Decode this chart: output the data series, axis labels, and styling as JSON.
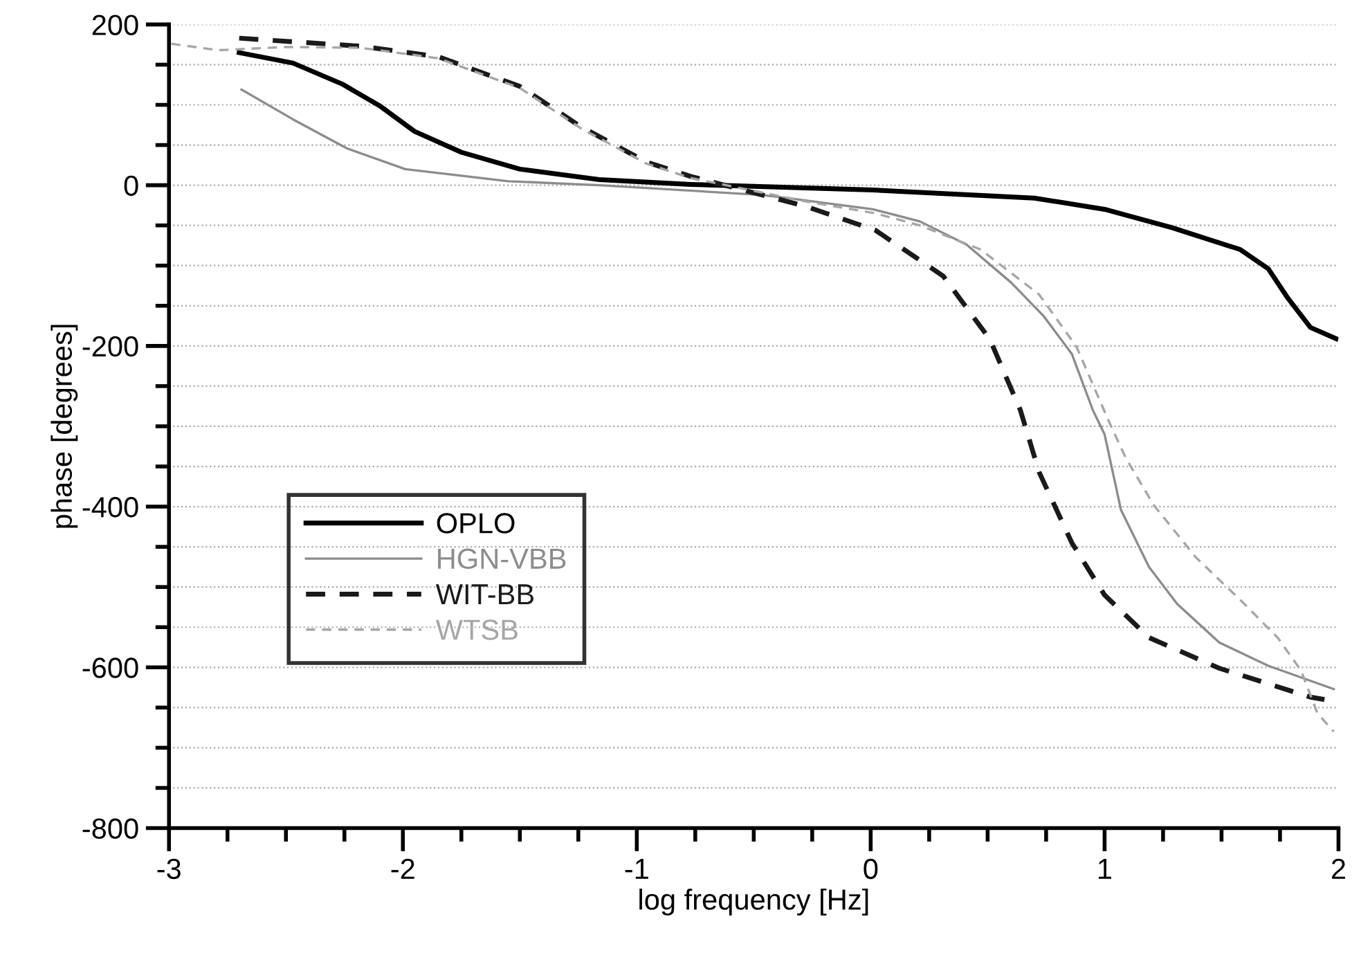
{
  "chart_data": {
    "type": "line",
    "xlabel": "log frequency [Hz]",
    "ylabel": "phase [degrees]",
    "xlim": [
      -3,
      2
    ],
    "ylim": [
      -800,
      200
    ],
    "xticks": [
      -3,
      {
        "value": -2.75,
        "label": null
      },
      {
        "value": -2.5,
        "label": null
      },
      {
        "value": -2.25,
        "label": null
      },
      -2,
      {
        "value": -1.75,
        "label": null
      },
      {
        "value": -1.5,
        "label": null
      },
      {
        "value": -1.25,
        "label": null
      },
      -1,
      {
        "value": -0.75,
        "label": null
      },
      {
        "value": -0.5,
        "label": null
      },
      {
        "value": -0.25,
        "label": null
      },
      0,
      {
        "value": 0.25,
        "label": null
      },
      {
        "value": 0.5,
        "label": null
      },
      {
        "value": 0.75,
        "label": null
      },
      1,
      {
        "value": 1.25,
        "label": null
      },
      {
        "value": 1.5,
        "label": null
      },
      {
        "value": 1.75,
        "label": null
      },
      2
    ],
    "yticks": [
      -800,
      {
        "value": -750,
        "label": null
      },
      {
        "value": -700,
        "label": null
      },
      {
        "value": -650,
        "label": null
      },
      -600,
      {
        "value": -550,
        "label": null
      },
      {
        "value": -500,
        "label": null
      },
      {
        "value": -450,
        "label": null
      },
      -400,
      {
        "value": -350,
        "label": null
      },
      {
        "value": -300,
        "label": null
      },
      {
        "value": -250,
        "label": null
      },
      -200,
      {
        "value": -150,
        "label": null
      },
      {
        "value": -100,
        "label": null
      },
      {
        "value": -50,
        "label": null
      },
      0,
      {
        "value": 50,
        "label": null
      },
      {
        "value": 100,
        "label": null
      },
      {
        "value": 150,
        "label": null
      },
      200
    ],
    "grid": "y",
    "legend": "left",
    "marker": "none",
    "series": [
      {
        "name": "OPLO",
        "color": "#000000",
        "line_style": "solid",
        "x": [
          -2.7,
          -2.47,
          -2.26,
          -2.1,
          -1.95,
          -1.75,
          -1.5,
          -1.16,
          -0.77,
          0.01,
          0.7,
          1.0,
          1.29,
          1.58,
          1.7,
          1.78,
          1.88,
          1.99
        ],
        "values": [
          165,
          152,
          126,
          99,
          67,
          41,
          20,
          7,
          1,
          -6,
          -16,
          -30,
          -53,
          -80,
          -104,
          -139,
          -177,
          -191
        ]
      },
      {
        "name": "HGN-VBB",
        "color": "#8c8c8c",
        "line_style": "solid",
        "x": [
          -2.69,
          -2.47,
          -2.24,
          -1.99,
          -1.55,
          -1.16,
          -0.47,
          -0.38,
          0.01,
          0.21,
          0.41,
          0.6,
          0.74,
          0.86,
          0.95,
          1.0,
          1.07,
          1.19,
          1.31,
          1.49,
          1.7,
          1.98
        ],
        "values": [
          119,
          82,
          46,
          20,
          5,
          0,
          -12,
          -15,
          -30,
          -45,
          -74,
          -121,
          -163,
          -210,
          -280,
          -310,
          -404,
          -475,
          -521,
          -569,
          -598,
          -627
        ]
      },
      {
        "name": "WIT-BB",
        "color": "#1a1a1a",
        "line_style": "dashed",
        "x": [
          -2.7,
          -2.18,
          -1.85,
          -1.5,
          -1.24,
          -0.96,
          -0.77,
          -0.28,
          0.02,
          0.31,
          0.51,
          0.64,
          0.72,
          0.86,
          1.0,
          1.19,
          1.49,
          1.88,
          1.94
        ],
        "values": [
          183,
          173,
          160,
          123,
          73,
          29,
          11,
          -26,
          -56,
          -113,
          -192,
          -280,
          -357,
          -445,
          -510,
          -563,
          -601,
          -637,
          -640
        ]
      },
      {
        "name": "WTSB",
        "color": "#a6a6a6",
        "line_style": "dashed",
        "x": [
          -2.99,
          -2.79,
          -2.5,
          -2.18,
          -1.85,
          -1.5,
          -1.24,
          -0.96,
          -0.77,
          -0.28,
          0.02,
          0.21,
          0.47,
          0.72,
          0.88,
          1.02,
          1.09,
          1.21,
          1.39,
          1.58,
          1.74,
          1.84,
          1.91,
          1.98
        ],
        "values": [
          176,
          168,
          172,
          171,
          158,
          121,
          71,
          27,
          9,
          -20,
          -35,
          -50,
          -80,
          -136,
          -201,
          -295,
          -339,
          -398,
          -463,
          -516,
          -563,
          -604,
          -657,
          -680
        ]
      }
    ]
  }
}
